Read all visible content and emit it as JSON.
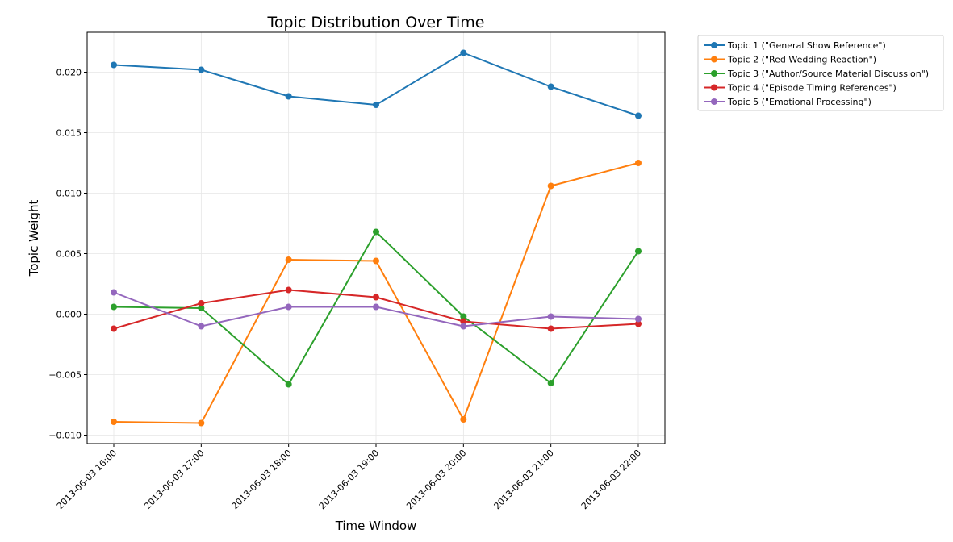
{
  "chart_data": {
    "type": "line",
    "title": "Topic Distribution Over Time",
    "xlabel": "Time Window",
    "ylabel": "Topic Weight",
    "categories": [
      "2013-06-03 16:00",
      "2013-06-03 17:00",
      "2013-06-03 18:00",
      "2013-06-03 19:00",
      "2013-06-03 20:00",
      "2013-06-03 21:00",
      "2013-06-03 22:00"
    ],
    "ylim": [
      -0.0107,
      0.0233
    ],
    "yticks": [
      -0.01,
      -0.005,
      0.0,
      0.005,
      0.01,
      0.015,
      0.02
    ],
    "ytick_labels": [
      "−0.010",
      "−0.005",
      "0.000",
      "0.005",
      "0.010",
      "0.015",
      "0.020"
    ],
    "grid": true,
    "legend_position": "outside-top-right",
    "series": [
      {
        "name": "Topic 1 (\"General Show Reference\")",
        "color": "#1f77b4",
        "values": [
          0.0206,
          0.0202,
          0.018,
          0.0173,
          0.0216,
          0.0188,
          0.0164
        ]
      },
      {
        "name": "Topic 2 (\"Red Wedding Reaction\")",
        "color": "#ff7f0e",
        "values": [
          -0.0089,
          -0.009,
          0.0045,
          0.0044,
          -0.0087,
          0.0106,
          0.0125
        ]
      },
      {
        "name": "Topic 3 (\"Author/Source Material Discussion\")",
        "color": "#2ca02c",
        "values": [
          0.0006,
          0.0005,
          -0.0058,
          0.0068,
          -0.0002,
          -0.0057,
          0.0052
        ]
      },
      {
        "name": "Topic 4 (\"Episode Timing References\")",
        "color": "#d62728",
        "values": [
          -0.0012,
          0.0009,
          0.002,
          0.0014,
          -0.0006,
          -0.0012,
          -0.0008
        ]
      },
      {
        "name": "Topic 5 (\"Emotional Processing\")",
        "color": "#9467bd",
        "values": [
          0.0018,
          -0.001,
          0.0006,
          0.0006,
          -0.001,
          -0.0002,
          -0.0004
        ]
      }
    ]
  }
}
